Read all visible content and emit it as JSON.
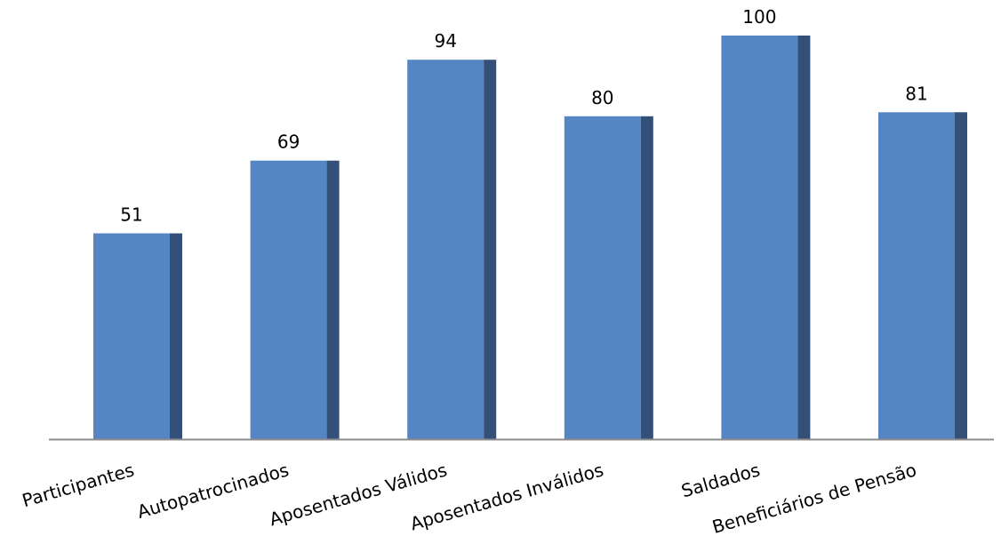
{
  "chart_data": {
    "type": "bar",
    "categories": [
      "Participantes",
      "Autopatrocinados",
      "Aposentados Válidos",
      "Aposentados Inválidos",
      "Saldados",
      "Beneficiários de Pensão"
    ],
    "values": [
      51,
      69,
      94,
      80,
      100,
      81
    ],
    "data_labels": [
      "51",
      "69",
      "94",
      "80",
      "100",
      "81"
    ],
    "ylim": [
      0,
      100
    ],
    "grid": false,
    "legend": "none",
    "title": "",
    "xlabel": "",
    "ylabel": "",
    "colors": {
      "bar_front": "#5585c3",
      "bar_side": "#345079",
      "axis": "#8c8c8c"
    }
  }
}
